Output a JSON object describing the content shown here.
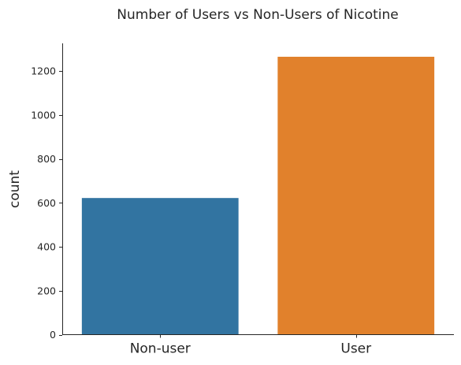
{
  "chart_data": {
    "type": "bar",
    "title": "Number of Users vs Non-Users of Nicotine",
    "xlabel": "",
    "ylabel": "count",
    "categories": [
      "Non-user",
      "User"
    ],
    "values": [
      622,
      1265
    ],
    "colors": [
      "#3274a1",
      "#e1812c"
    ],
    "ylim": [
      0,
      1326
    ],
    "yticks": [
      0,
      200,
      400,
      600,
      800,
      1000,
      1200
    ],
    "grid": false,
    "legend": "none"
  }
}
